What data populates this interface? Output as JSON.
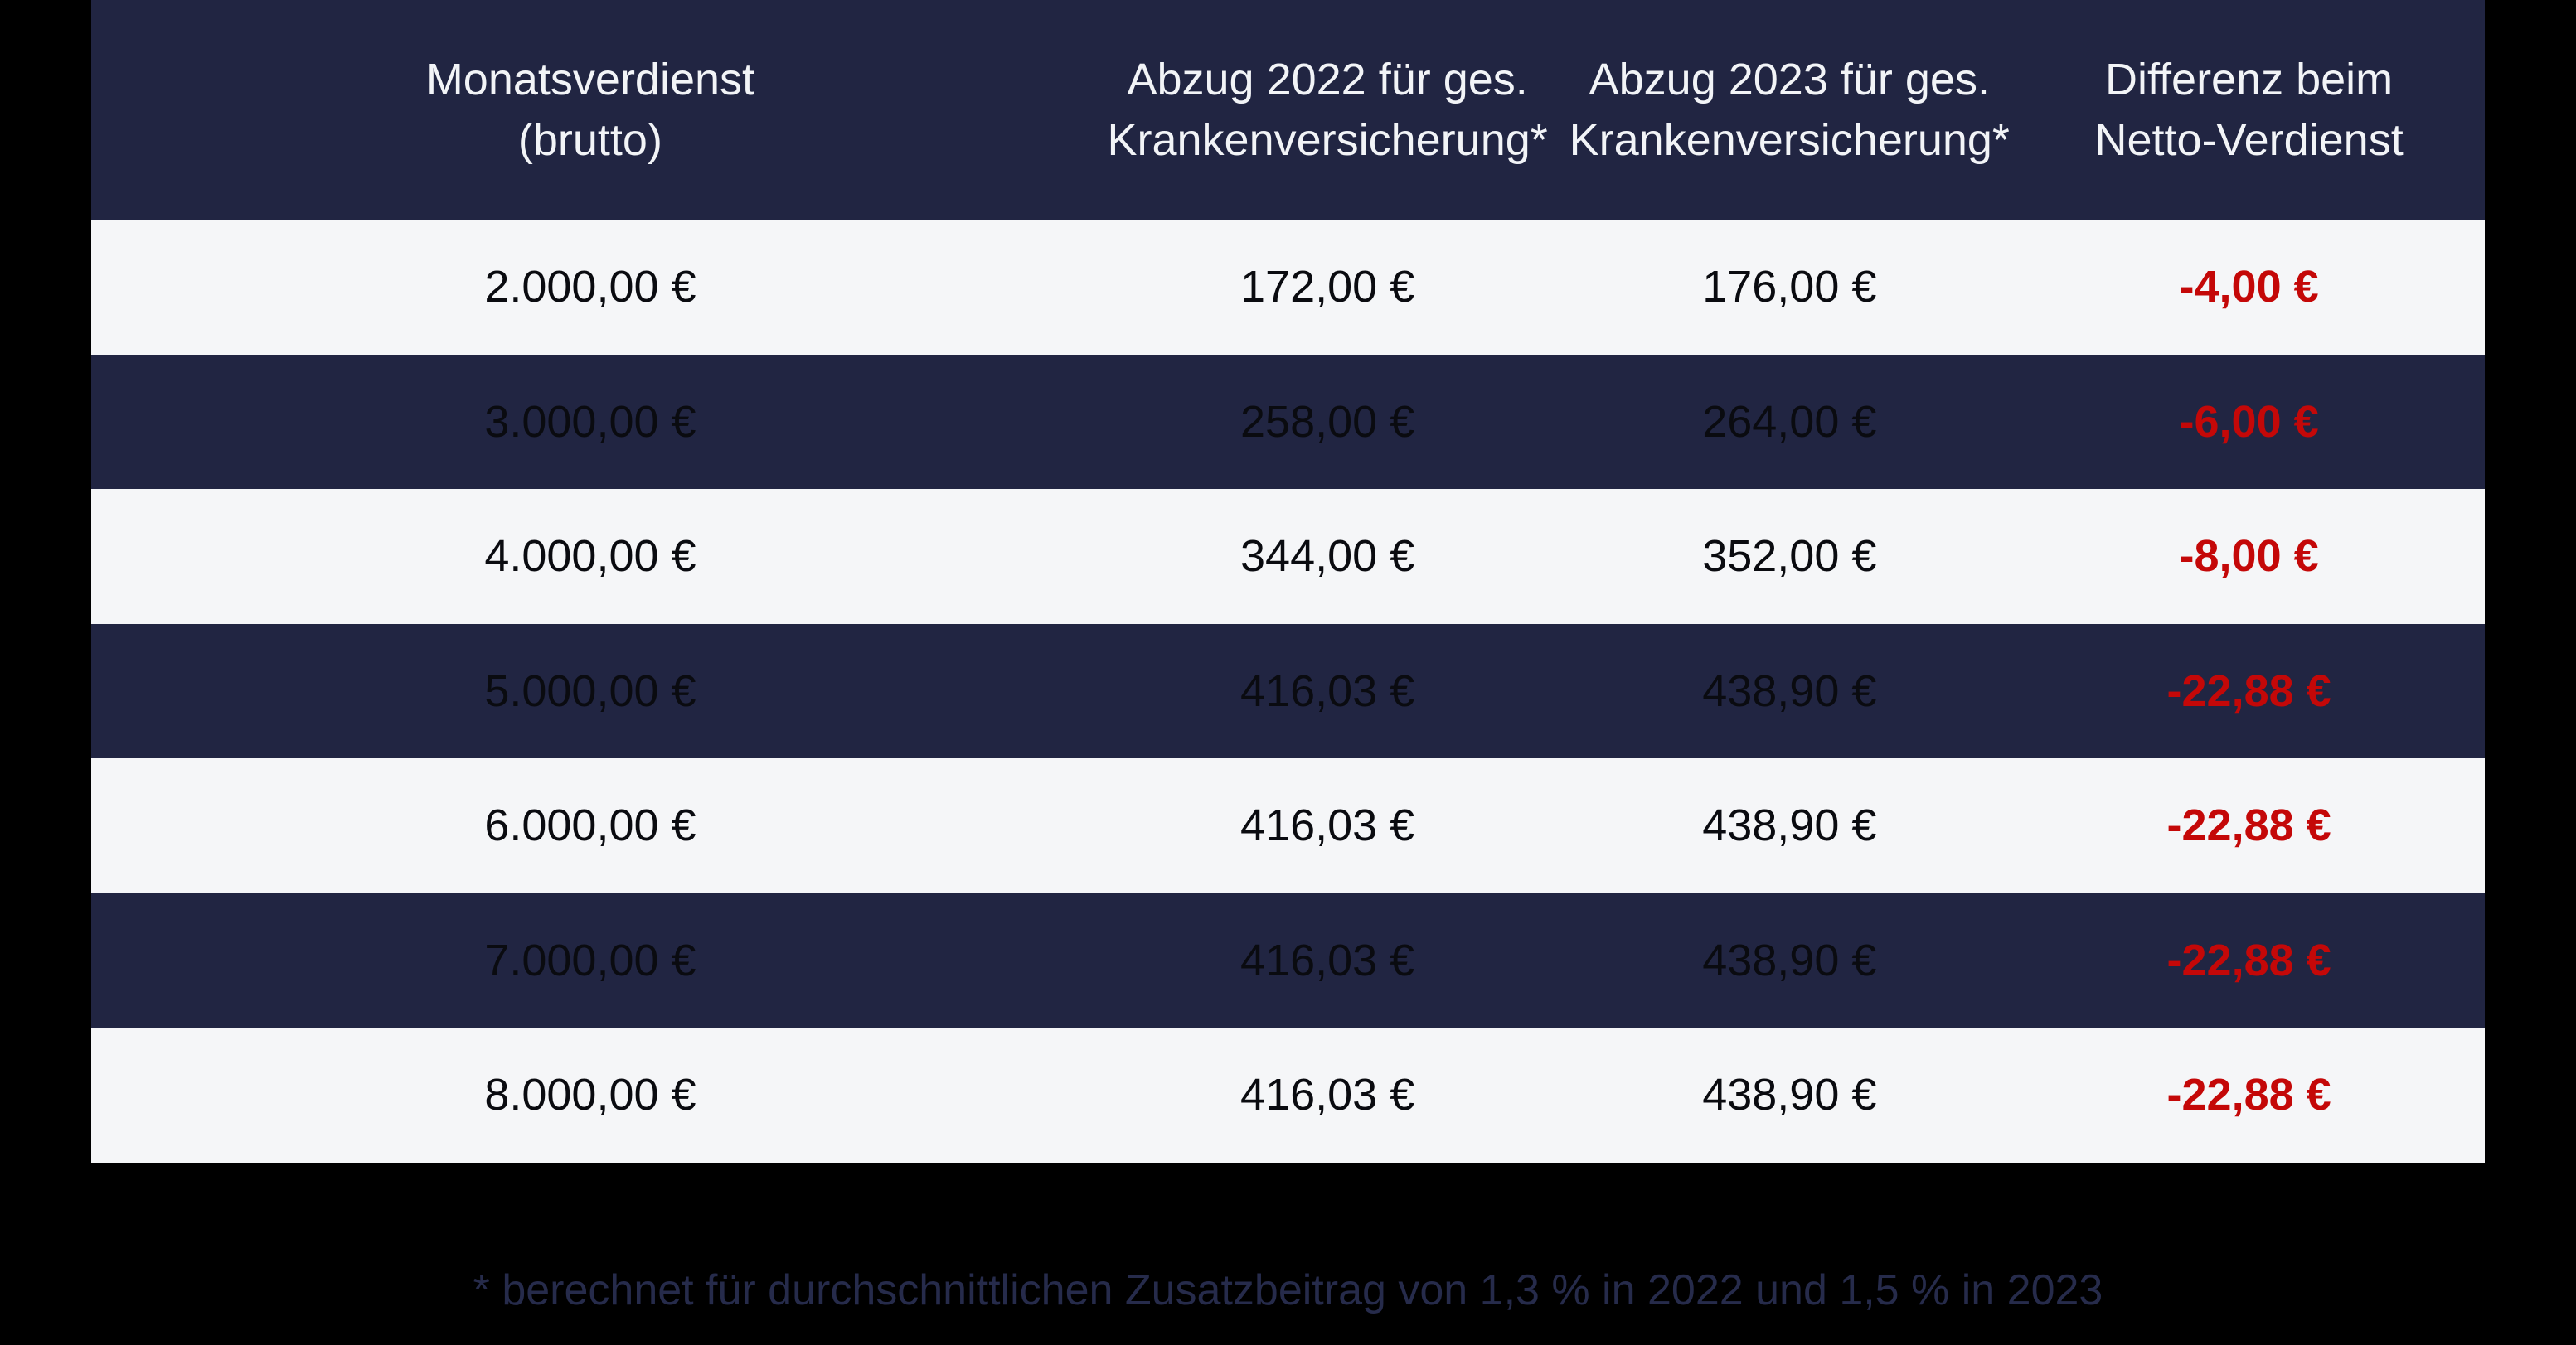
{
  "chart_data": {
    "type": "table",
    "title": "",
    "columns": [
      "Monatsverdienst\n(brutto)",
      "Abzug 2022 für ges.\nKrankenversicherung*",
      "Abzug 2023 für ges.\nKrankenversicherung*",
      "Differenz beim\nNetto-Verdienst"
    ],
    "rows": [
      [
        "2.000,00 €",
        "172,00 €",
        "176,00 €",
        "-4,00 €"
      ],
      [
        "3.000,00 €",
        "258,00 €",
        "264,00 €",
        "-6,00 €"
      ],
      [
        "4.000,00 €",
        "344,00 €",
        "352,00 €",
        "-8,00 €"
      ],
      [
        "5.000,00 €",
        "416,03 €",
        "438,90 €",
        "-22,88 €"
      ],
      [
        "6.000,00 €",
        "416,03 €",
        "438,90 €",
        "-22,88 €"
      ],
      [
        "7.000,00 €",
        "416,03 €",
        "438,90 €",
        "-22,88 €"
      ],
      [
        "8.000,00 €",
        "416,03 €",
        "438,90 €",
        "-22,88 €"
      ]
    ],
    "footnote": "* berechnet für durchschnittlichen Zusatzbeitrag von 1,3 % in 2022 und 1,5 % in 2023",
    "layout": {
      "grid": "off",
      "row_striping": "alternating dark-navy / light",
      "negative_values_highlighted": true
    }
  },
  "colors": {
    "page_background": "#000000",
    "header_bg": "#212542",
    "row_dark_bg": "#212542",
    "row_light_bg": "#f5f6f8",
    "header_text": "#f2f4f7",
    "body_text": "#0a0b10",
    "negative_value": "#c40808",
    "footnote_text": "#262b4b"
  }
}
